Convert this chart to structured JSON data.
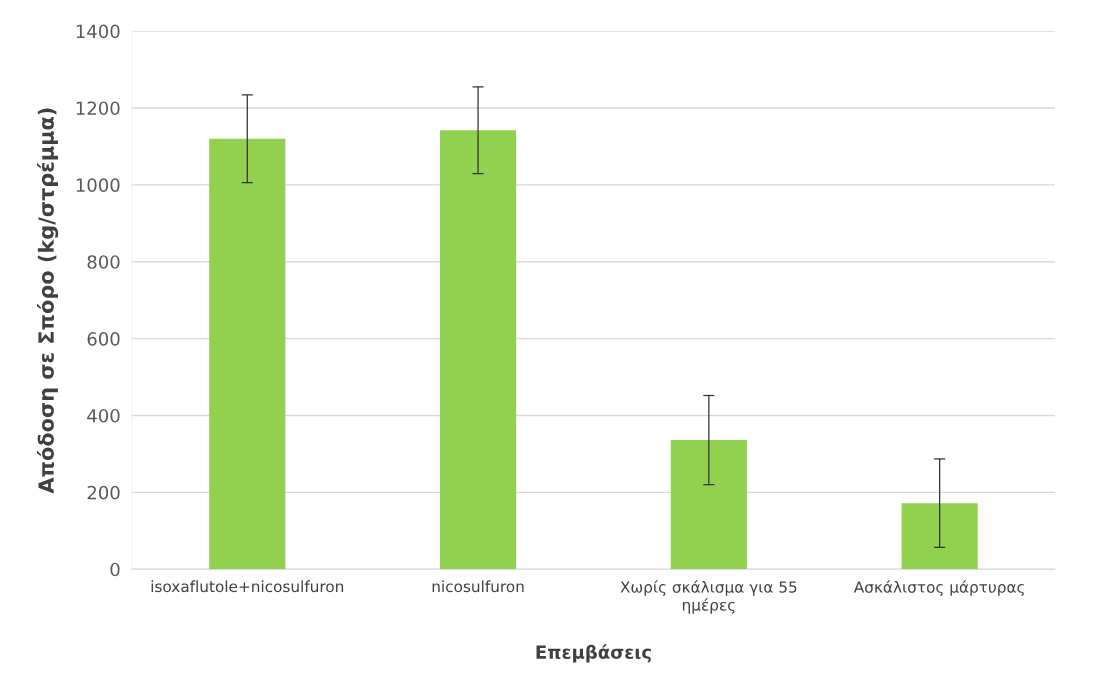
{
  "chart_data": {
    "type": "bar",
    "xlabel": "Επεμβάσεις",
    "ylabel": "Απόδοση σε Σπόρο (kg/στρέμμα)",
    "categories": [
      "isoxaflutole+nicosulfuron",
      "nicosulfuron",
      "Χωρίς σκάλισμα για 55\nημέρες",
      "Ασκάλιστος μάρτυρας"
    ],
    "values": [
      1120,
      1142,
      336,
      172
    ],
    "errors": [
      114,
      113,
      116,
      115
    ],
    "color": "#92d050",
    "ylim": [
      0,
      1400
    ],
    "yticks": [
      0,
      200,
      400,
      600,
      800,
      1000,
      1200,
      1400
    ],
    "grid": "y",
    "legend": false
  }
}
